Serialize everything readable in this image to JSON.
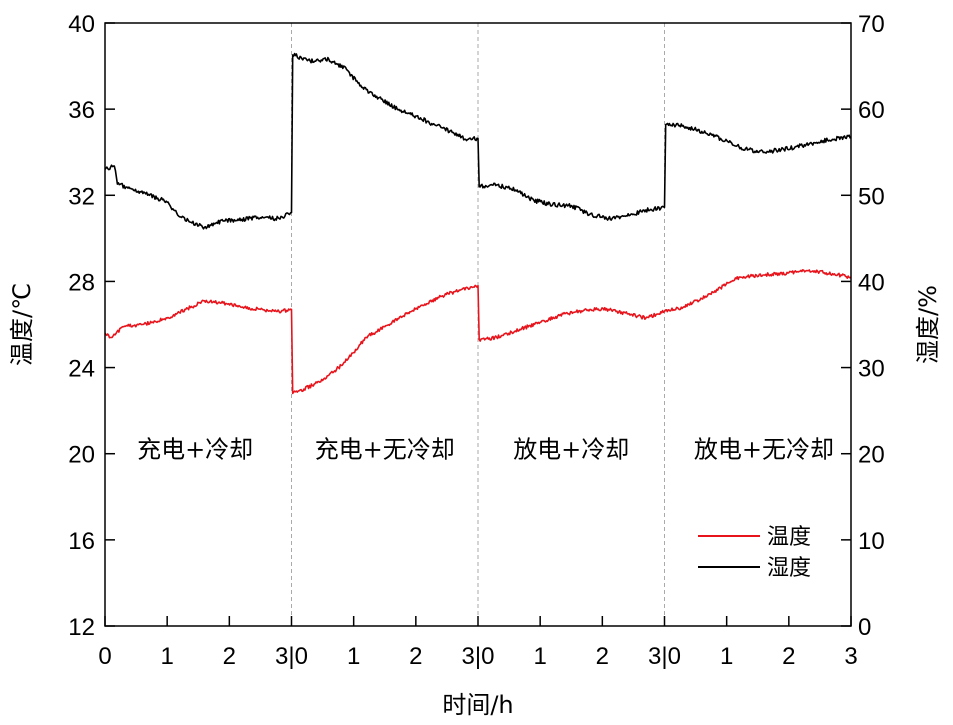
{
  "chart_data": {
    "type": "line",
    "xlabel": "时间/h",
    "ylabel_left": "温度/℃",
    "ylabel_right": "湿度/%",
    "ylim_left": [
      12,
      40
    ],
    "yticks_left": [
      12,
      16,
      20,
      24,
      28,
      32,
      36,
      40
    ],
    "ylim_right": [
      0,
      70
    ],
    "yticks_right": [
      0,
      10,
      20,
      30,
      40,
      50,
      60,
      70
    ],
    "xlim": [
      0,
      12
    ],
    "x_tick_labels": [
      {
        "x": 0,
        "label": "0"
      },
      {
        "x": 1,
        "label": "1"
      },
      {
        "x": 2,
        "label": "2"
      },
      {
        "x": 3,
        "label": "3|0"
      },
      {
        "x": 4,
        "label": "1"
      },
      {
        "x": 5,
        "label": "2"
      },
      {
        "x": 6,
        "label": "3|0"
      },
      {
        "x": 7,
        "label": "1"
      },
      {
        "x": 8,
        "label": "2"
      },
      {
        "x": 9,
        "label": "3|0"
      },
      {
        "x": 10,
        "label": "1"
      },
      {
        "x": 11,
        "label": "2"
      },
      {
        "x": 12,
        "label": "3"
      }
    ],
    "phase_dividers": [
      3,
      6,
      9
    ],
    "phases": [
      {
        "label": "充电+冷却",
        "x_center": 1.45
      },
      {
        "label": "充电+无冷却",
        "x_center": 4.5
      },
      {
        "label": "放电+冷却",
        "x_center": 7.5
      },
      {
        "label": "放电+无冷却",
        "x_center": 10.6
      }
    ],
    "legend_position": "bottom-right",
    "series": [
      {
        "name": "温度",
        "axis": "left",
        "color": "#e8141c",
        "points": [
          [
            0,
            25.6
          ],
          [
            0.1,
            25.4
          ],
          [
            0.3,
            25.9
          ],
          [
            0.6,
            26.0
          ],
          [
            1.0,
            26.3
          ],
          [
            1.3,
            26.7
          ],
          [
            1.6,
            27.1
          ],
          [
            1.9,
            27.0
          ],
          [
            2.2,
            26.8
          ],
          [
            2.5,
            26.7
          ],
          [
            2.8,
            26.6
          ],
          [
            3.0,
            26.7
          ],
          [
            3.02,
            22.8
          ],
          [
            3.2,
            23.0
          ],
          [
            3.5,
            23.4
          ],
          [
            3.8,
            24.1
          ],
          [
            4.0,
            24.7
          ],
          [
            4.2,
            25.4
          ],
          [
            4.5,
            25.9
          ],
          [
            4.8,
            26.4
          ],
          [
            5.1,
            26.9
          ],
          [
            5.4,
            27.3
          ],
          [
            5.7,
            27.6
          ],
          [
            6.0,
            27.8
          ],
          [
            6.02,
            25.3
          ],
          [
            6.3,
            25.4
          ],
          [
            6.6,
            25.7
          ],
          [
            7.0,
            26.1
          ],
          [
            7.4,
            26.5
          ],
          [
            7.8,
            26.7
          ],
          [
            8.1,
            26.7
          ],
          [
            8.4,
            26.5
          ],
          [
            8.7,
            26.3
          ],
          [
            9.0,
            26.6
          ],
          [
            9.3,
            26.8
          ],
          [
            9.6,
            27.2
          ],
          [
            9.9,
            27.7
          ],
          [
            10.2,
            28.2
          ],
          [
            10.6,
            28.3
          ],
          [
            11.0,
            28.4
          ],
          [
            11.3,
            28.5
          ],
          [
            11.6,
            28.4
          ],
          [
            12.0,
            28.2
          ]
        ]
      },
      {
        "name": "湿度",
        "axis": "right",
        "color": "#000000",
        "points": [
          [
            0,
            53.0
          ],
          [
            0.15,
            53.4
          ],
          [
            0.2,
            51.3
          ],
          [
            0.4,
            50.8
          ],
          [
            0.7,
            50.1
          ],
          [
            1.0,
            49.2
          ],
          [
            1.2,
            47.5
          ],
          [
            1.4,
            46.8
          ],
          [
            1.6,
            46.3
          ],
          [
            1.9,
            47.0
          ],
          [
            2.2,
            47.2
          ],
          [
            2.5,
            47.4
          ],
          [
            2.8,
            47.3
          ],
          [
            3.0,
            48.0
          ],
          [
            3.02,
            66.3
          ],
          [
            3.3,
            65.6
          ],
          [
            3.6,
            65.8
          ],
          [
            3.9,
            64.5
          ],
          [
            4.1,
            62.7
          ],
          [
            4.4,
            61.3
          ],
          [
            4.7,
            60.0
          ],
          [
            5.0,
            59.2
          ],
          [
            5.3,
            58.2
          ],
          [
            5.6,
            57.3
          ],
          [
            5.8,
            56.5
          ],
          [
            6.0,
            56.6
          ],
          [
            6.02,
            51.0
          ],
          [
            6.3,
            51.2
          ],
          [
            6.6,
            50.6
          ],
          [
            6.9,
            49.4
          ],
          [
            7.2,
            48.9
          ],
          [
            7.5,
            48.8
          ],
          [
            7.8,
            47.8
          ],
          [
            8.1,
            47.3
          ],
          [
            8.4,
            47.6
          ],
          [
            8.7,
            48.3
          ],
          [
            9.0,
            48.6
          ],
          [
            9.02,
            58.2
          ],
          [
            9.3,
            58.1
          ],
          [
            9.6,
            57.4
          ],
          [
            9.9,
            56.6
          ],
          [
            10.2,
            55.6
          ],
          [
            10.5,
            55.0
          ],
          [
            10.8,
            55.2
          ],
          [
            11.1,
            55.6
          ],
          [
            11.4,
            56.1
          ],
          [
            11.7,
            56.5
          ],
          [
            12.0,
            56.8
          ]
        ]
      }
    ]
  }
}
